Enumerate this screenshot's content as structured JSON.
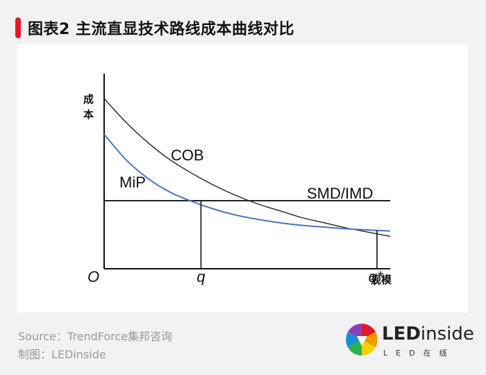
{
  "header": {
    "title": "图表2 主流直显技术路线成本曲线对比"
  },
  "chart_data": {
    "type": "line",
    "title": "",
    "xlabel": "规模",
    "ylabel": "成本",
    "origin_label": "O",
    "x_tick_labels": [
      "q",
      "q*"
    ],
    "series": [
      {
        "name": "COB",
        "description_shape": "steep decreasing curve",
        "color": "#222222",
        "x": [
          0,
          1,
          2,
          3,
          4,
          5,
          6,
          7,
          8,
          9,
          10,
          11,
          12,
          13
        ],
        "y": [
          100,
          86,
          74,
          64,
          56,
          49,
          43,
          38,
          34,
          30,
          27,
          24,
          21.5,
          19
        ]
      },
      {
        "name": "MiP",
        "color": "#4a72c8",
        "x": [
          0,
          1,
          2,
          3,
          4,
          5,
          6,
          7,
          8,
          9,
          10,
          11,
          12,
          13
        ],
        "y": [
          79,
          64,
          53,
          45,
          39.5,
          35,
          31.5,
          29,
          27,
          25.5,
          24.5,
          23.5,
          22.8,
          22.2
        ]
      },
      {
        "name": "SMD/IMD",
        "color": "#222222",
        "x": [
          0,
          13
        ],
        "y": [
          40,
          40
        ]
      }
    ],
    "xlim": [
      0,
      13
    ],
    "ylim": [
      0,
      100
    ]
  },
  "footer": {
    "source": "Source：TrendForce集邦咨询",
    "credit": "制图：LEDinside"
  },
  "logo": {
    "brand_bold": "LED",
    "brand_rest": "inside",
    "subtitle": "LED在线"
  }
}
